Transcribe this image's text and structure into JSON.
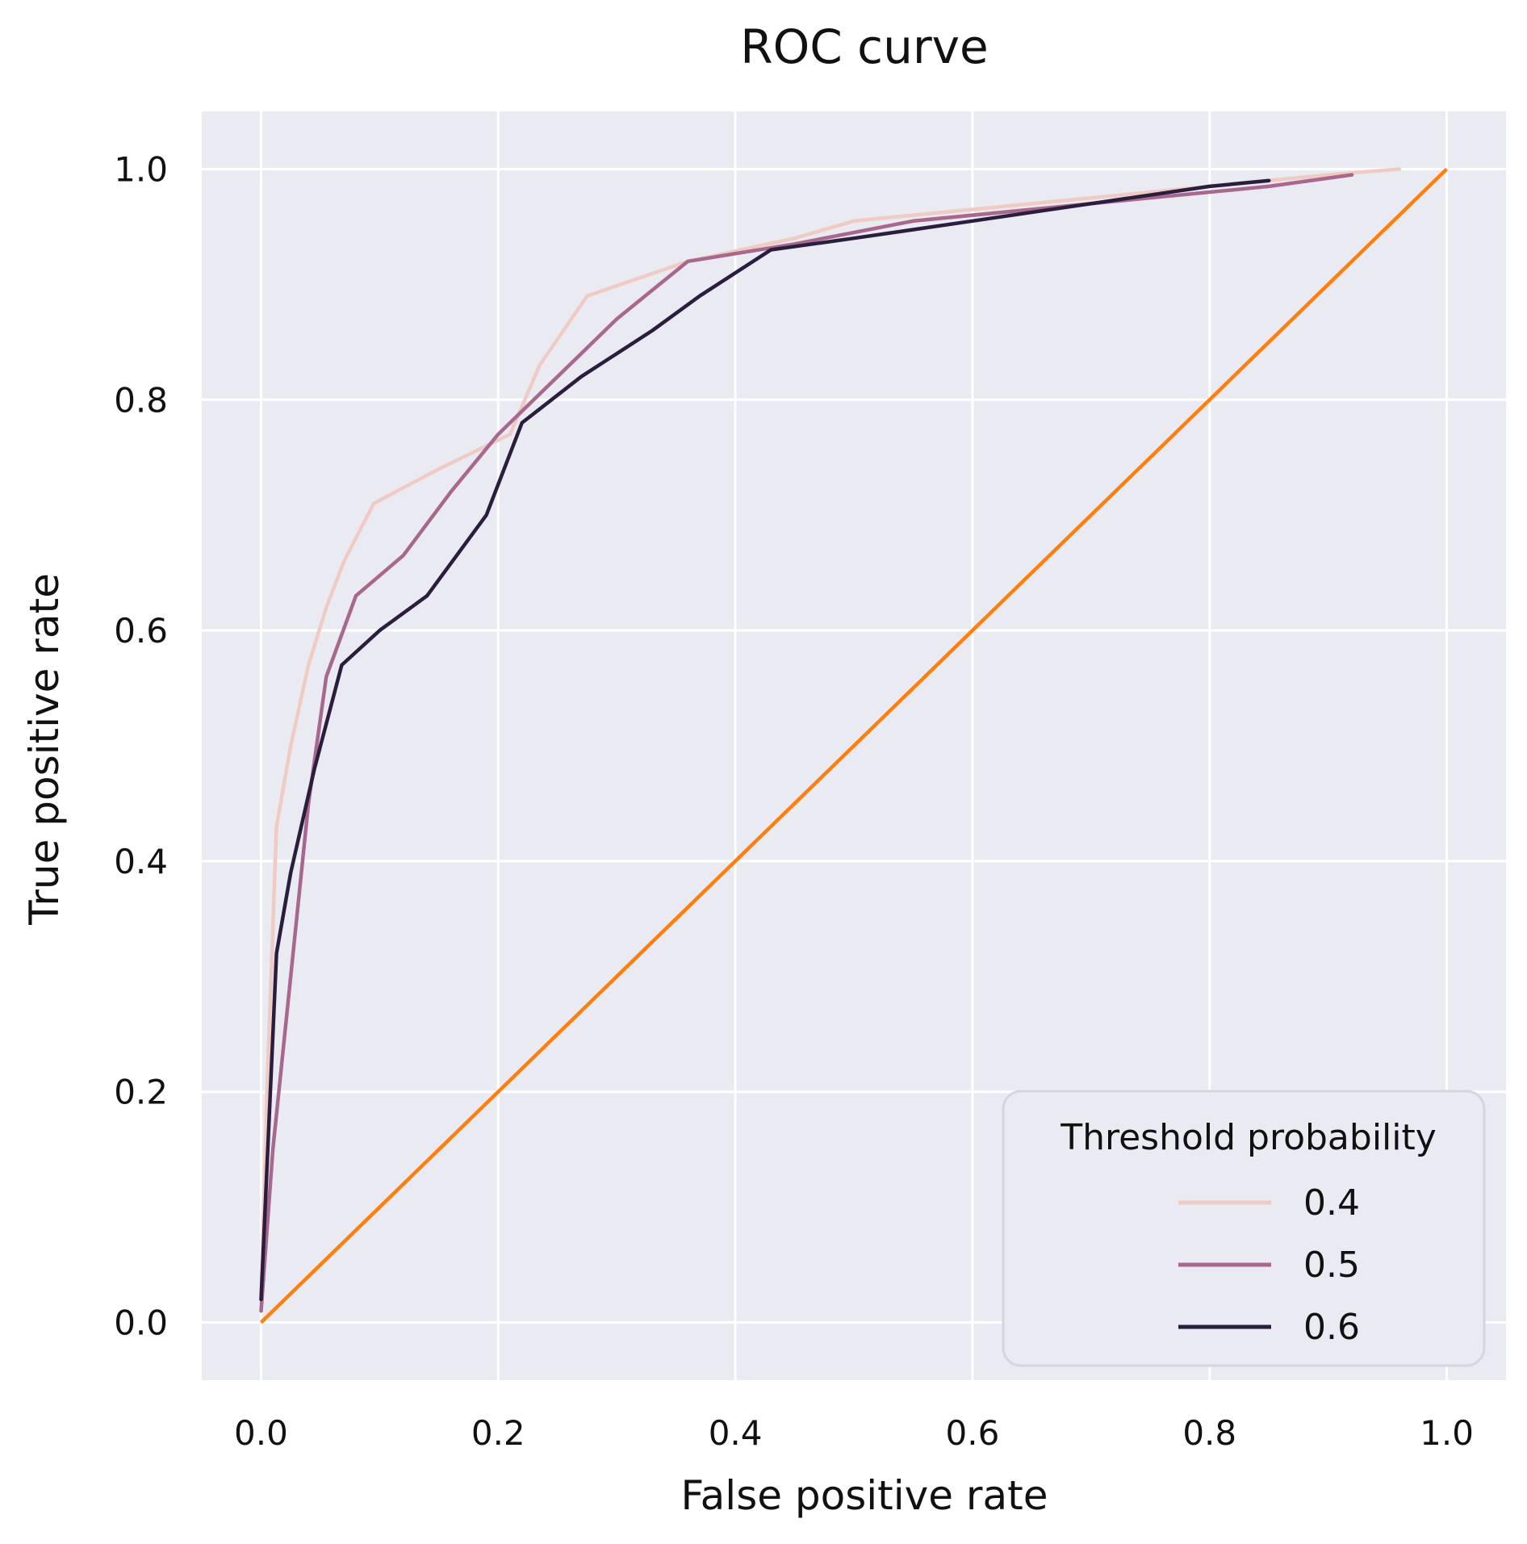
{
  "chart_data": {
    "type": "line",
    "title": "ROC curve",
    "xlabel": "False positive rate",
    "ylabel": "True positive rate",
    "xlim": [
      -0.05,
      1.05
    ],
    "ylim": [
      -0.05,
      1.05
    ],
    "x_ticks": [
      "0.0",
      "0.2",
      "0.4",
      "0.6",
      "0.8",
      "1.0"
    ],
    "y_ticks": [
      "0.0",
      "0.2",
      "0.4",
      "0.6",
      "0.8",
      "1.0"
    ],
    "x_tick_values": [
      0,
      0.2,
      0.4,
      0.6,
      0.8,
      1.0
    ],
    "y_tick_values": [
      0,
      0.2,
      0.4,
      0.6,
      0.8,
      1.0
    ],
    "grid": true,
    "legend": {
      "title": "Threshold probability",
      "placement": "lower-right"
    },
    "series": [
      {
        "name": "0.4",
        "color": "#efcbc4",
        "points": [
          [
            0.0,
            0.02
          ],
          [
            0.005,
            0.2
          ],
          [
            0.013,
            0.43
          ],
          [
            0.025,
            0.5
          ],
          [
            0.04,
            0.57
          ],
          [
            0.055,
            0.62
          ],
          [
            0.07,
            0.66
          ],
          [
            0.095,
            0.71
          ],
          [
            0.15,
            0.74
          ],
          [
            0.21,
            0.77
          ],
          [
            0.235,
            0.83
          ],
          [
            0.275,
            0.89
          ],
          [
            0.36,
            0.92
          ],
          [
            0.45,
            0.94
          ],
          [
            0.5,
            0.955
          ],
          [
            0.6,
            0.965
          ],
          [
            0.7,
            0.975
          ],
          [
            0.8,
            0.985
          ],
          [
            0.9,
            0.995
          ],
          [
            0.96,
            1.0
          ]
        ]
      },
      {
        "name": "0.5",
        "color": "#a8688e",
        "points": [
          [
            0.0,
            0.01
          ],
          [
            0.01,
            0.15
          ],
          [
            0.025,
            0.3
          ],
          [
            0.04,
            0.45
          ],
          [
            0.055,
            0.56
          ],
          [
            0.08,
            0.63
          ],
          [
            0.12,
            0.665
          ],
          [
            0.16,
            0.72
          ],
          [
            0.2,
            0.77
          ],
          [
            0.25,
            0.82
          ],
          [
            0.3,
            0.87
          ],
          [
            0.36,
            0.92
          ],
          [
            0.45,
            0.935
          ],
          [
            0.55,
            0.955
          ],
          [
            0.7,
            0.97
          ],
          [
            0.85,
            0.985
          ],
          [
            0.92,
            0.995
          ]
        ]
      },
      {
        "name": "0.6",
        "color": "#2b1d3e",
        "points": [
          [
            0.0,
            0.02
          ],
          [
            0.013,
            0.32
          ],
          [
            0.025,
            0.39
          ],
          [
            0.045,
            0.48
          ],
          [
            0.068,
            0.57
          ],
          [
            0.1,
            0.6
          ],
          [
            0.14,
            0.63
          ],
          [
            0.19,
            0.7
          ],
          [
            0.22,
            0.78
          ],
          [
            0.27,
            0.82
          ],
          [
            0.33,
            0.86
          ],
          [
            0.37,
            0.89
          ],
          [
            0.43,
            0.93
          ],
          [
            0.5,
            0.94
          ],
          [
            0.6,
            0.955
          ],
          [
            0.7,
            0.97
          ],
          [
            0.8,
            0.985
          ],
          [
            0.85,
            0.99
          ]
        ]
      }
    ],
    "reference_line": {
      "color": "#ff7f0e",
      "points": [
        [
          0.0,
          0.0
        ],
        [
          1.0,
          1.0
        ]
      ]
    }
  }
}
